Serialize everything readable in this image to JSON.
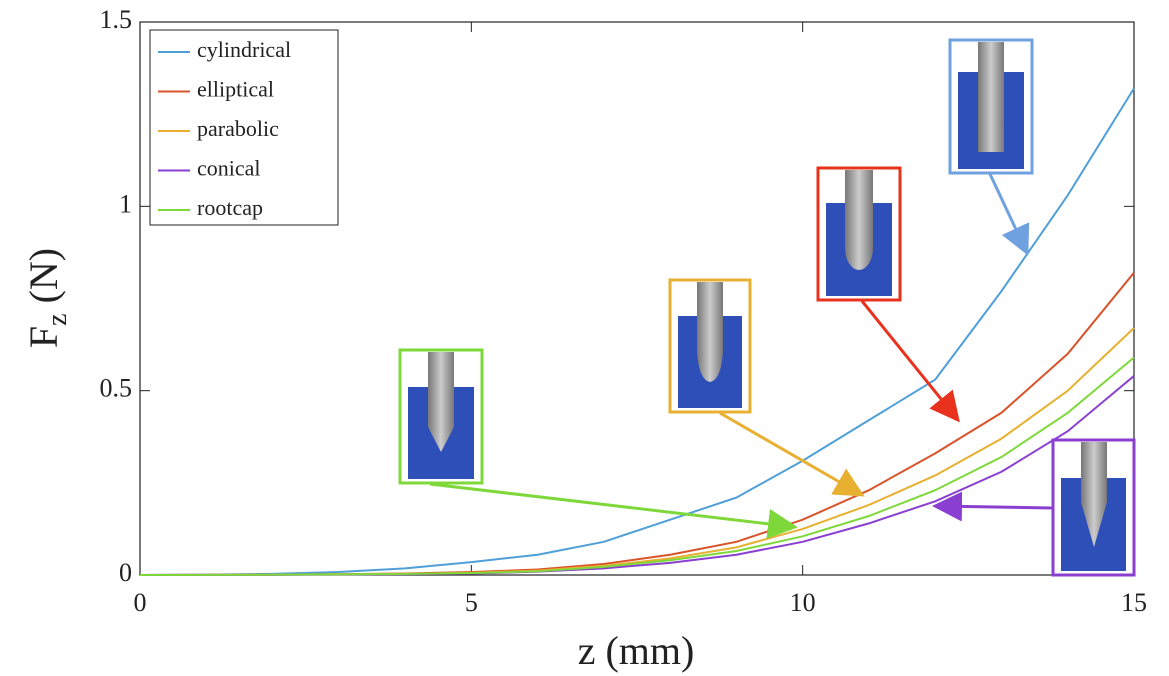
{
  "chart_data": {
    "type": "line",
    "xlabel": "z (mm)",
    "ylabel": [
      "F",
      "z",
      "(N)"
    ],
    "x": [
      0,
      1,
      2,
      3,
      4,
      5,
      6,
      7,
      8,
      9,
      10,
      11,
      12,
      13,
      14,
      15
    ],
    "series": [
      {
        "name": "cylindrical",
        "color": "#4f9fd8",
        "values": [
          0,
          0.001,
          0.003,
          0.008,
          0.018,
          0.035,
          0.055,
          0.09,
          0.15,
          0.21,
          0.31,
          0.42,
          0.53,
          0.77,
          1.03,
          1.32
        ]
      },
      {
        "name": "elliptical",
        "color": "#d9532a",
        "values": [
          0,
          0.0005,
          0.001,
          0.002,
          0.004,
          0.008,
          0.015,
          0.03,
          0.055,
          0.09,
          0.15,
          0.23,
          0.33,
          0.44,
          0.6,
          0.82
        ]
      },
      {
        "name": "parabolic",
        "color": "#e8b030",
        "values": [
          0,
          0.0004,
          0.001,
          0.002,
          0.003,
          0.006,
          0.012,
          0.025,
          0.045,
          0.075,
          0.125,
          0.19,
          0.27,
          0.37,
          0.5,
          0.67
        ]
      },
      {
        "name": "conical",
        "color": "#8a3fd0",
        "values": [
          0,
          0.0003,
          0.0008,
          0.0015,
          0.0025,
          0.004,
          0.009,
          0.018,
          0.033,
          0.055,
          0.09,
          0.14,
          0.2,
          0.28,
          0.39,
          0.54
        ]
      },
      {
        "name": "rootcap",
        "color": "#7ed83a",
        "values": [
          0,
          0.0003,
          0.0009,
          0.0017,
          0.003,
          0.005,
          0.01,
          0.022,
          0.04,
          0.065,
          0.105,
          0.16,
          0.23,
          0.32,
          0.44,
          0.59
        ]
      }
    ],
    "xlim": [
      0,
      15
    ],
    "xticks": [
      0,
      5,
      10,
      15
    ],
    "ylim": [
      0,
      1.5
    ],
    "yticks": [
      0,
      0.5,
      1,
      1.5
    ],
    "grid": false,
    "legend": "upper-left"
  }
}
